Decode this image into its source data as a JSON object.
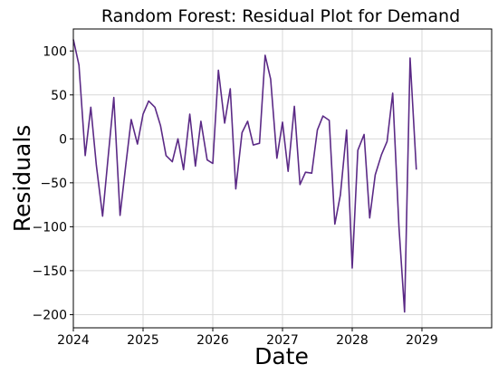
{
  "chart_data": {
    "type": "line",
    "title": "Random Forest: Residual Plot for Demand",
    "xlabel": "Date",
    "ylabel": "Residuals",
    "xlim": [
      2024.0,
      2030.0
    ],
    "ylim": [
      -215,
      125
    ],
    "grid": true,
    "line_color": "#5b2a86",
    "x_ticks": [
      {
        "value": 2024,
        "label": "2024"
      },
      {
        "value": 2025,
        "label": "2025"
      },
      {
        "value": 2026,
        "label": "2026"
      },
      {
        "value": 2027,
        "label": "2027"
      },
      {
        "value": 2028,
        "label": "2028"
      },
      {
        "value": 2029,
        "label": "2029"
      }
    ],
    "y_ticks": [
      {
        "value": 100,
        "label": "100"
      },
      {
        "value": 50,
        "label": "50"
      },
      {
        "value": 0,
        "label": "0"
      },
      {
        "value": -50,
        "label": "−50"
      },
      {
        "value": -100,
        "label": "−100"
      },
      {
        "value": -150,
        "label": "−150"
      },
      {
        "value": -200,
        "label": "−200"
      }
    ],
    "series": [
      {
        "x": [
          2024.0,
          2024.08,
          2024.17,
          2024.25,
          2024.33,
          2024.42,
          2024.5,
          2024.58,
          2024.67,
          2024.75,
          2024.83,
          2024.92,
          2025.0,
          2025.08,
          2025.17,
          2025.25,
          2025.33,
          2025.42,
          2025.5,
          2025.58,
          2025.67,
          2025.75,
          2025.83,
          2025.92,
          2026.0,
          2026.08,
          2026.17,
          2026.25,
          2026.33,
          2026.42,
          2026.5,
          2026.58,
          2026.67,
          2026.75,
          2026.83,
          2026.92,
          2027.0,
          2027.08,
          2027.17,
          2027.25,
          2027.33,
          2027.42,
          2027.5,
          2027.58,
          2027.67,
          2027.75,
          2027.83,
          2027.92,
          2028.0,
          2028.08,
          2028.17,
          2028.25,
          2028.33,
          2028.42,
          2028.5,
          2028.58,
          2028.67,
          2028.75,
          2028.83,
          2028.92
        ],
        "y": [
          113,
          84,
          -19,
          36,
          -30,
          -88,
          -20,
          47,
          -87,
          -31,
          22,
          -6,
          28,
          43,
          36,
          15,
          -19,
          -26,
          0,
          -35,
          28,
          -31,
          20,
          -24,
          -28,
          78,
          18,
          57,
          -57,
          7,
          20,
          -7,
          -5,
          95,
          68,
          -22,
          19,
          -37,
          37,
          -52,
          -38,
          -39,
          10,
          26,
          21,
          -97,
          -64,
          10,
          -147,
          -13,
          5,
          -90,
          -41,
          -18,
          -3,
          52,
          -100,
          -197,
          92,
          -35
        ]
      }
    ]
  }
}
